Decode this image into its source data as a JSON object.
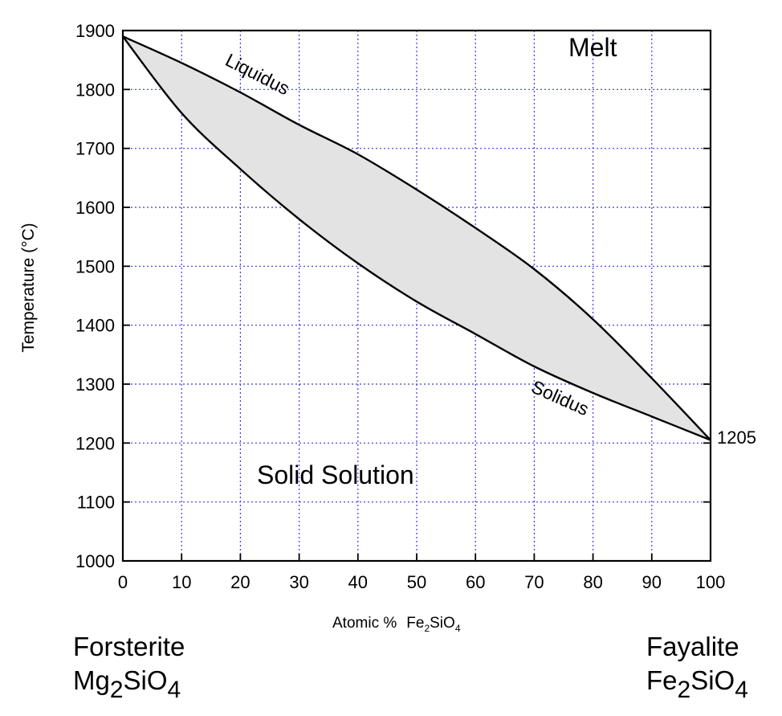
{
  "chart_data": {
    "type": "line",
    "xlabel": "Atomic %",
    "xlabel_formula": {
      "a": "Fe",
      "a_sub": "2",
      "b": "SiO",
      "b_sub": "4"
    },
    "ylabel": "Temperature (°C)",
    "xlim": [
      0,
      100
    ],
    "ylim": [
      1000,
      1900
    ],
    "xticks": [
      "0",
      "10",
      "20",
      "30",
      "40",
      "50",
      "60",
      "70",
      "80",
      "90",
      "100"
    ],
    "yticks": [
      "1000",
      "1100",
      "1200",
      "1300",
      "1400",
      "1500",
      "1600",
      "1700",
      "1800",
      "1900"
    ],
    "grid": true,
    "series": [
      {
        "name": "Liquidus",
        "x": [
          0,
          10,
          20,
          30,
          40,
          50,
          60,
          70,
          80,
          90,
          100
        ],
        "y": [
          1890,
          1845,
          1795,
          1740,
          1690,
          1630,
          1565,
          1495,
          1410,
          1310,
          1205
        ]
      },
      {
        "name": "Solidus",
        "x": [
          0,
          10,
          20,
          30,
          40,
          50,
          60,
          70,
          80,
          90,
          100
        ],
        "y": [
          1890,
          1760,
          1665,
          1580,
          1505,
          1440,
          1385,
          1330,
          1285,
          1245,
          1205
        ]
      }
    ],
    "annotations": {
      "melt": "Melt",
      "solid_solution": "Solid Solution",
      "liquidus_label": "Liquidus",
      "solidus_label": "Solidus",
      "endpoint_value": "1205"
    },
    "colors": {
      "fill": "#e3e3e3",
      "grid": "#3a3ae6",
      "line": "#000000"
    }
  },
  "endmembers": {
    "left": {
      "name": "Forsterite",
      "f1": "Mg",
      "f1_sub": "2",
      "f2": "SiO",
      "f2_sub": "4"
    },
    "right": {
      "name": "Fayalite",
      "f1": "Fe",
      "f1_sub": "2",
      "f2": "SiO",
      "f2_sub": "4"
    }
  }
}
